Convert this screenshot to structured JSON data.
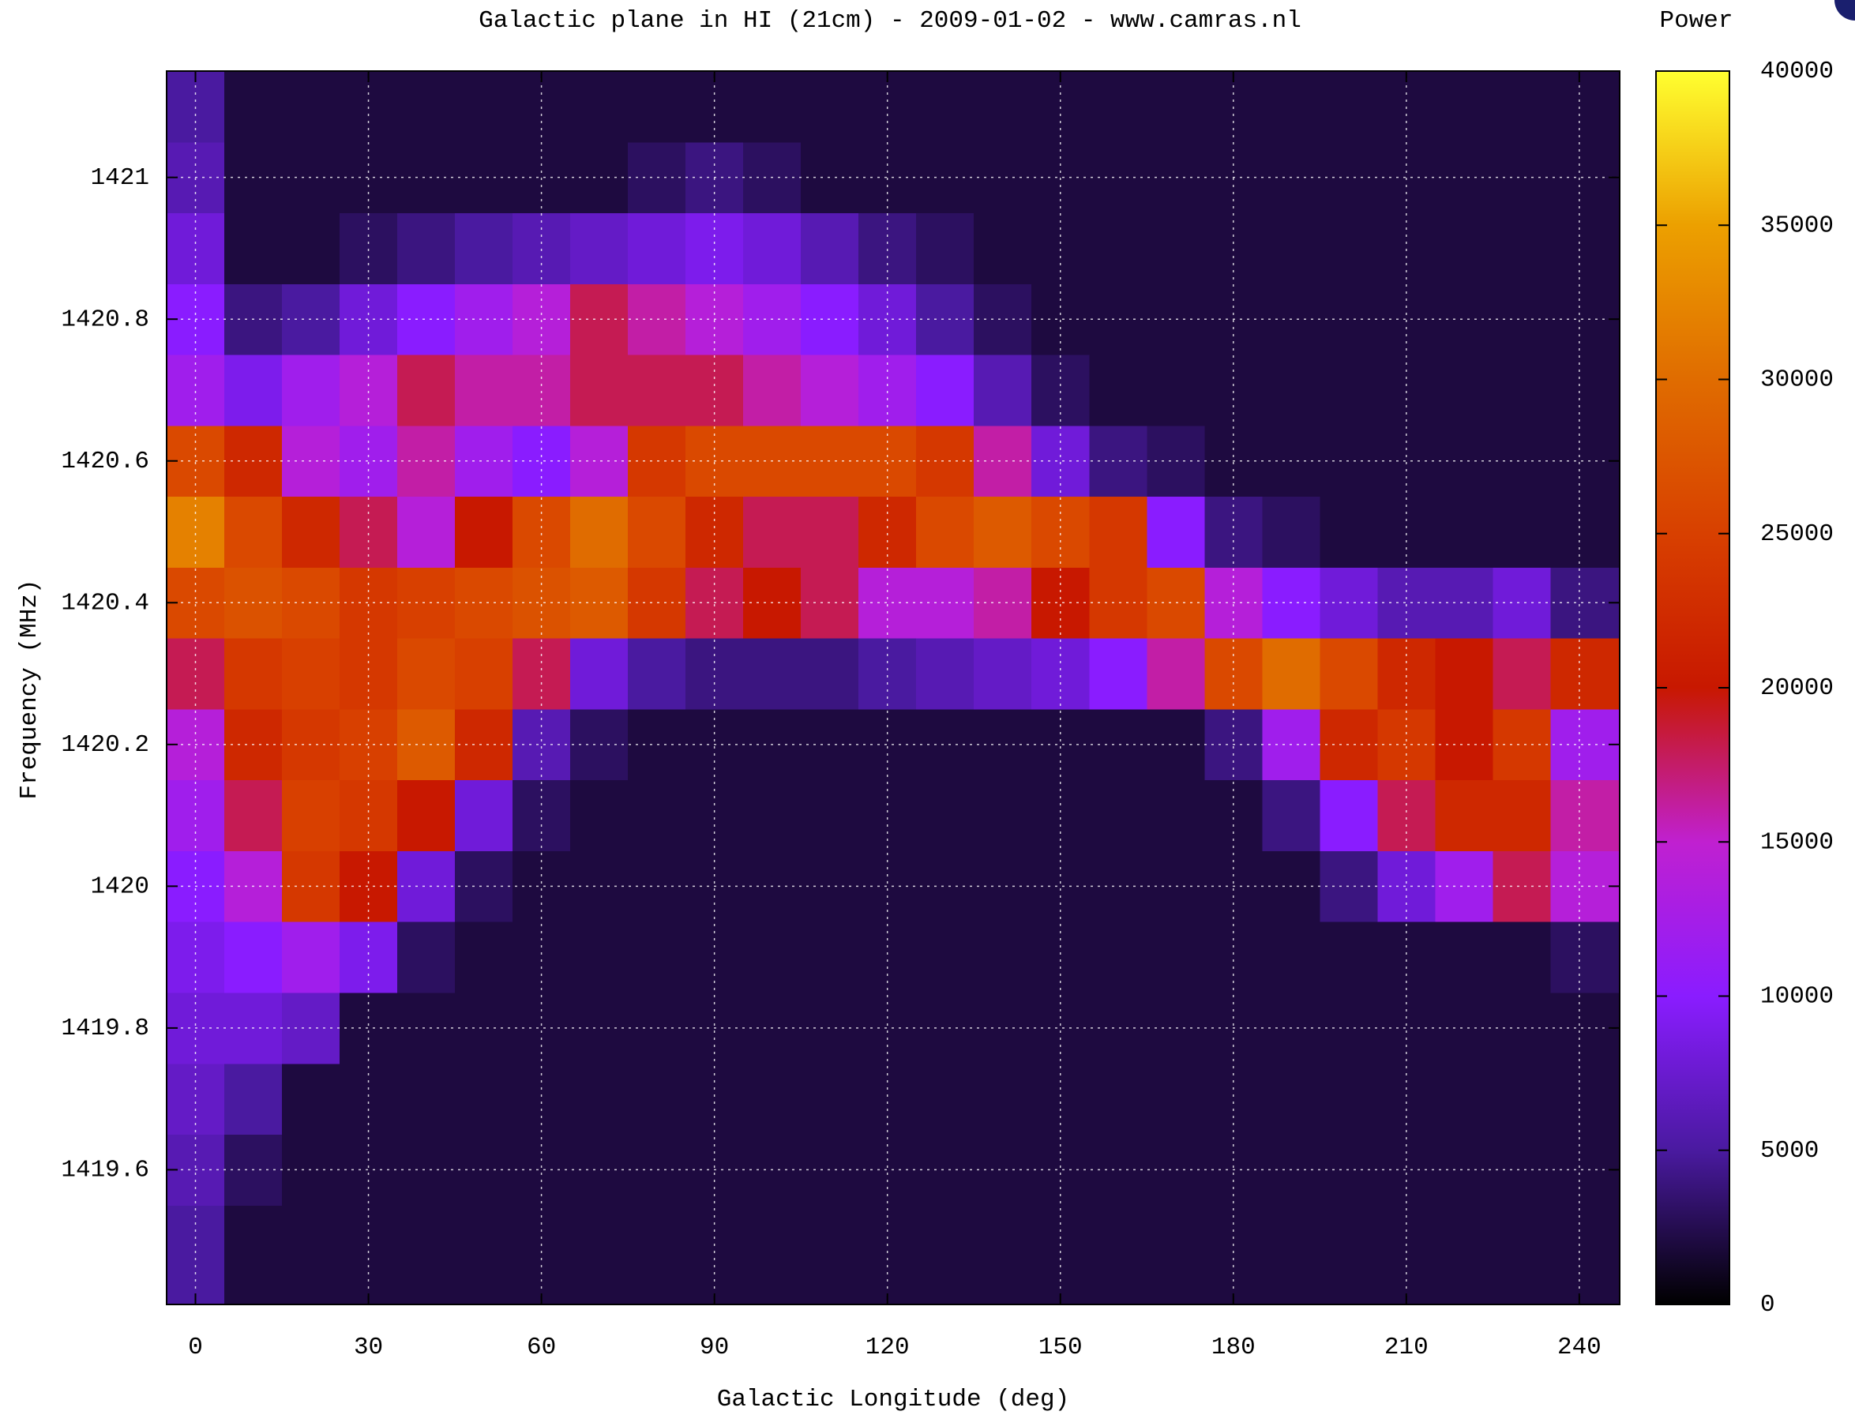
{
  "chart_data": {
    "type": "heatmap",
    "title": "Galactic plane in HI (21cm) - 2009-01-02 - www.camras.nl",
    "xlabel": "Galactic Longitude (deg)",
    "ylabel": "Frequency (MHz)",
    "colorbar_label": "Power",
    "x": [
      0,
      10,
      20,
      30,
      40,
      50,
      60,
      70,
      80,
      90,
      100,
      110,
      120,
      130,
      140,
      150,
      160,
      170,
      180,
      190,
      200,
      210,
      220,
      230,
      240
    ],
    "y": [
      1419.5,
      1419.6,
      1419.7,
      1419.8,
      1419.9,
      1420.0,
      1420.1,
      1420.2,
      1420.3,
      1420.4,
      1420.5,
      1420.6,
      1420.7,
      1420.8,
      1420.9,
      1421.0,
      1421.1
    ],
    "z": [
      [
        5000,
        2000,
        2000,
        2000,
        2000,
        2000,
        2000,
        2000,
        2000,
        2000,
        2000,
        2000,
        2000,
        2000,
        2000,
        2000,
        2000,
        2000,
        2000,
        2000,
        2000,
        2000,
        2000,
        2000,
        2000
      ],
      [
        6000,
        3000,
        2000,
        2000,
        2000,
        2000,
        2000,
        2000,
        2000,
        2000,
        2000,
        2000,
        2000,
        2000,
        2000,
        2000,
        2000,
        2000,
        2000,
        2000,
        2000,
        2000,
        2000,
        2000,
        2000
      ],
      [
        7000,
        5000,
        2000,
        2000,
        2000,
        2000,
        2000,
        2000,
        2000,
        2000,
        2000,
        2000,
        2000,
        2000,
        2000,
        2000,
        2000,
        2000,
        2000,
        2000,
        2000,
        2000,
        2000,
        2000,
        2000
      ],
      [
        8000,
        8000,
        7000,
        2000,
        2000,
        2000,
        2000,
        2000,
        2000,
        2000,
        2000,
        2000,
        2000,
        2000,
        2000,
        2000,
        2000,
        2000,
        2000,
        2000,
        2000,
        2000,
        2000,
        2000,
        2000
      ],
      [
        9000,
        10000,
        12000,
        9000,
        3000,
        2000,
        2000,
        2000,
        2000,
        2000,
        2000,
        2000,
        2000,
        2000,
        2000,
        2000,
        2000,
        2000,
        2000,
        2000,
        2000,
        2000,
        2000,
        2000,
        3000
      ],
      [
        10000,
        14000,
        24000,
        20000,
        8000,
        3000,
        2000,
        2000,
        2000,
        2000,
        2000,
        2000,
        2000,
        2000,
        2000,
        2000,
        2000,
        2000,
        2000,
        2000,
        4000,
        8000,
        12000,
        18000,
        14000
      ],
      [
        12000,
        18000,
        25000,
        24000,
        20000,
        8000,
        3000,
        2000,
        2000,
        2000,
        2000,
        2000,
        2000,
        2000,
        2000,
        2000,
        2000,
        2000,
        2000,
        4000,
        10000,
        18000,
        22000,
        22000,
        16000
      ],
      [
        14000,
        22000,
        24000,
        25000,
        28000,
        22000,
        6000,
        3000,
        2000,
        2000,
        2000,
        2000,
        2000,
        2000,
        2000,
        2000,
        2000,
        2000,
        4000,
        12000,
        22000,
        24000,
        20000,
        24000,
        12000
      ],
      [
        18000,
        24000,
        25000,
        24000,
        26000,
        25000,
        18000,
        8000,
        5000,
        4000,
        4000,
        4000,
        5000,
        6000,
        7000,
        8000,
        10000,
        16000,
        26000,
        30000,
        26000,
        22000,
        20000,
        18000,
        22000
      ],
      [
        26000,
        27000,
        26000,
        24000,
        25000,
        26000,
        27000,
        28000,
        24000,
        18000,
        20000,
        18000,
        14000,
        14000,
        16000,
        20000,
        24000,
        26000,
        14000,
        10000,
        8000,
        6000,
        6000,
        8000,
        4000
      ],
      [
        32000,
        26000,
        22000,
        18000,
        14000,
        20000,
        26000,
        30000,
        26000,
        22000,
        18000,
        18000,
        22000,
        26000,
        28000,
        26000,
        24000,
        10000,
        4000,
        3000,
        2000,
        2000,
        2000,
        2000,
        2000
      ],
      [
        26000,
        22000,
        14000,
        12000,
        16000,
        12000,
        10000,
        14000,
        24000,
        26000,
        26000,
        26000,
        26000,
        24000,
        16000,
        8000,
        4000,
        3000,
        2000,
        2000,
        2000,
        2000,
        2000,
        2000,
        2000
      ],
      [
        12000,
        9000,
        12000,
        14000,
        18000,
        16000,
        16000,
        18000,
        18000,
        18000,
        16000,
        14000,
        12000,
        10000,
        6000,
        3000,
        2000,
        2000,
        2000,
        2000,
        2000,
        2000,
        2000,
        2000,
        2000
      ],
      [
        10000,
        4000,
        5000,
        8000,
        10000,
        12000,
        14000,
        18000,
        16000,
        14000,
        12000,
        10000,
        8000,
        5000,
        3000,
        2000,
        2000,
        2000,
        2000,
        2000,
        2000,
        2000,
        2000,
        2000,
        2000
      ],
      [
        8000,
        2000,
        2000,
        3000,
        4000,
        5000,
        6000,
        7000,
        8000,
        9000,
        8000,
        6000,
        4000,
        3000,
        2000,
        2000,
        2000,
        2000,
        2000,
        2000,
        2000,
        2000,
        2000,
        2000,
        2000
      ],
      [
        6000,
        2000,
        2000,
        2000,
        2000,
        2000,
        2000,
        2000,
        3000,
        4000,
        3000,
        2000,
        2000,
        2000,
        2000,
        2000,
        2000,
        2000,
        2000,
        2000,
        2000,
        2000,
        2000,
        2000,
        2000
      ],
      [
        5000,
        2000,
        2000,
        2000,
        2000,
        2000,
        2000,
        2000,
        2000,
        2000,
        2000,
        2000,
        2000,
        2000,
        2000,
        2000,
        2000,
        2000,
        2000,
        2000,
        2000,
        2000,
        2000,
        2000,
        2000
      ]
    ],
    "xlim": [
      -5,
      247
    ],
    "ylim": [
      1419.41,
      1421.15
    ],
    "xticks": [
      0,
      30,
      60,
      90,
      120,
      150,
      180,
      210,
      240
    ],
    "yticks": [
      1419.6,
      1419.8,
      1420,
      1420.2,
      1420.4,
      1420.6,
      1420.8,
      1421
    ],
    "clim": [
      0,
      40000
    ],
    "cticks": [
      0,
      5000,
      10000,
      15000,
      20000,
      25000,
      30000,
      35000,
      40000
    ],
    "colormap": [
      "#000000",
      "#4a1aa0",
      "#8a1cff",
      "#c020d0",
      "#c81800",
      "#d84000",
      "#e06c00",
      "#eca000",
      "#ffff30"
    ],
    "grid": true
  }
}
